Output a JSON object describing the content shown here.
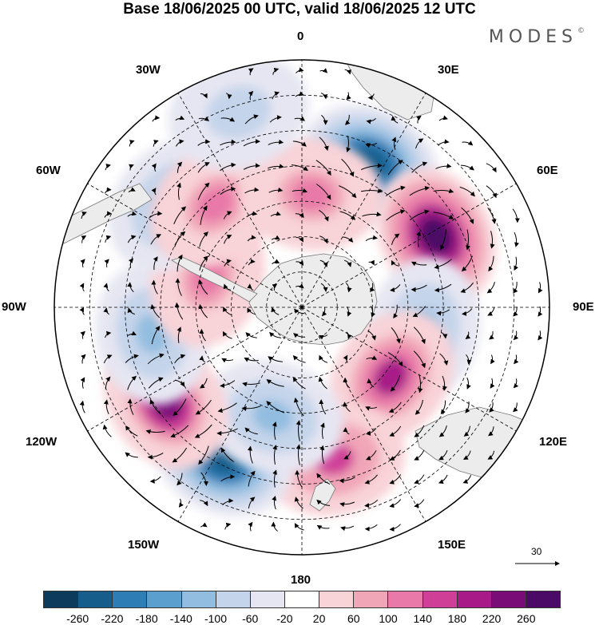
{
  "title": "Base 18/06/2025 00 UTC, valid 18/06/2025 12 UTC",
  "brand": "MODES",
  "brand_mark": "©",
  "longitude_labels": {
    "lon_0": "0",
    "lon_30e": "30E",
    "lon_60e": "60E",
    "lon_90e": "90E",
    "lon_120e": "120E",
    "lon_150e": "150E",
    "lon_180": "180",
    "lon_150w": "150W",
    "lon_120w": "120W",
    "lon_90w": "90W",
    "lon_60w": "60W",
    "lon_30w": "30W"
  },
  "vector_scale_label": "30",
  "colorbar": {
    "ticks": [
      "-260",
      "-220",
      "-180",
      "-140",
      "-100",
      "-60",
      "-20",
      "20",
      "60",
      "100",
      "140",
      "180",
      "220",
      "260"
    ],
    "colors": [
      "#0d3b5c",
      "#175d8c",
      "#2f7db5",
      "#5b9fcf",
      "#93bde0",
      "#c4d4ea",
      "#e6e6f2",
      "#ffffff",
      "#f8d3d8",
      "#f1a6b8",
      "#e879a8",
      "#cf3f98",
      "#a71a88",
      "#7a0c78",
      "#4b0a66"
    ]
  },
  "map_colors": {
    "land": "#ececec",
    "ocean": "#ffffff",
    "grid": "#000000",
    "coast": "#666666"
  },
  "anomaly_centers": [
    {
      "name": "neg-30e",
      "lon": 25,
      "lat": -45,
      "level": "-260"
    },
    {
      "name": "pos-60e",
      "lon": 62,
      "lat": -47,
      "level": "260"
    },
    {
      "name": "neg-100e",
      "lon": 100,
      "lat": -55,
      "level": "-140"
    },
    {
      "name": "pos-125e",
      "lon": 128,
      "lat": -58,
      "level": "180"
    },
    {
      "name": "pos-165e",
      "lon": 168,
      "lat": -46,
      "level": "140"
    },
    {
      "name": "neg-150w",
      "lon": -152,
      "lat": -42,
      "level": "-260"
    },
    {
      "name": "neg-165w",
      "lon": -165,
      "lat": -58,
      "level": "-140"
    },
    {
      "name": "pos-125w",
      "lon": -125,
      "lat": -43,
      "level": "220"
    },
    {
      "name": "neg-100w",
      "lon": -100,
      "lat": -47,
      "level": "-140"
    },
    {
      "name": "pos-70w",
      "lon": -72,
      "lat": -62,
      "level": "100"
    },
    {
      "name": "neg-50w",
      "lon": -52,
      "lat": -43,
      "level": "-140"
    },
    {
      "name": "pos-40w",
      "lon": -40,
      "lat": -52,
      "level": "100"
    },
    {
      "name": "pos-10e",
      "lon": 5,
      "lat": -58,
      "level": "100"
    },
    {
      "name": "neg-20w",
      "lon": -18,
      "lat": -32,
      "level": "-100"
    }
  ]
}
